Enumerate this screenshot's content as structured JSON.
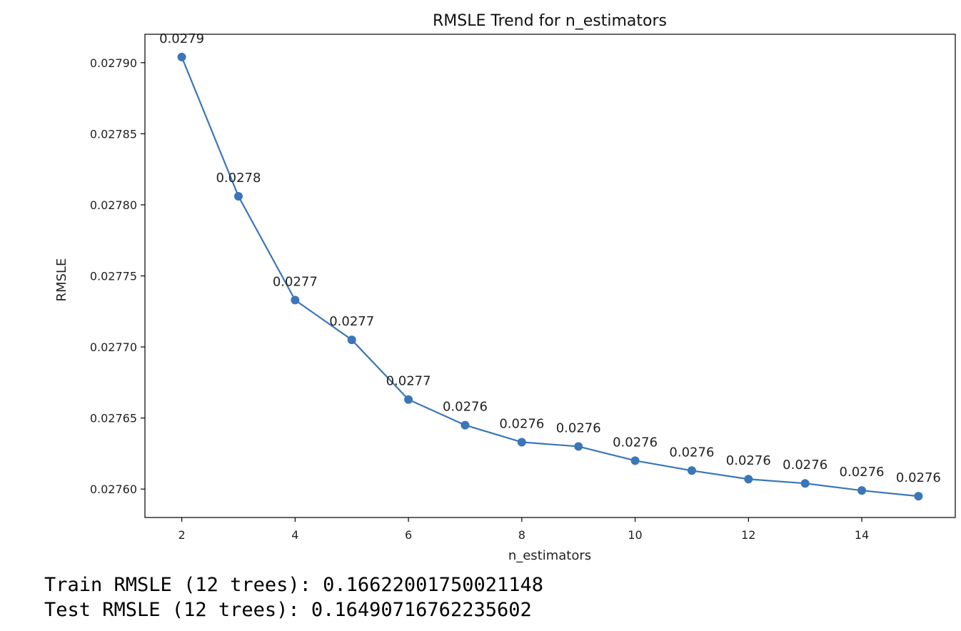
{
  "chart_data": {
    "type": "line",
    "title": "RMSLE Trend for n_estimators",
    "xlabel": "n_estimators",
    "ylabel": "RMSLE",
    "x": [
      2,
      3,
      4,
      5,
      6,
      7,
      8,
      9,
      10,
      11,
      12,
      13,
      14,
      15
    ],
    "series": [
      {
        "values": [
          0.027904,
          0.027806,
          0.027733,
          0.027705,
          0.027663,
          0.027645,
          0.027633,
          0.02763,
          0.02762,
          0.027613,
          0.027607,
          0.027604,
          0.027599,
          0.027595
        ],
        "data_labels": [
          "0.0279",
          "0.0278",
          "0.0277",
          "0.0277",
          "0.0277",
          "0.0276",
          "0.0276",
          "0.0276",
          "0.0276",
          "0.0276",
          "0.0276",
          "0.0276",
          "0.0276",
          "0.0276"
        ],
        "color": "#3a76b8",
        "marker": "circle"
      }
    ],
    "xticks": [
      2,
      4,
      6,
      8,
      10,
      12,
      14
    ],
    "xtick_labels": [
      "2",
      "4",
      "6",
      "8",
      "10",
      "12",
      "14"
    ],
    "yticks": [
      0.0276,
      0.02765,
      0.0277,
      0.02775,
      0.0278,
      0.02785,
      0.0279
    ],
    "ytick_labels": [
      "0.02760",
      "0.02765",
      "0.02770",
      "0.02775",
      "0.02780",
      "0.02785",
      "0.02790"
    ],
    "xlim": [
      1.35,
      15.65
    ],
    "ylim": [
      0.02758,
      0.02792
    ],
    "grid": false,
    "legend": "none"
  },
  "output": {
    "train_line": "Train RMSLE (12 trees): 0.16622001750021148",
    "test_line": "Test RMSLE (12 trees): 0.16490716762235602"
  }
}
